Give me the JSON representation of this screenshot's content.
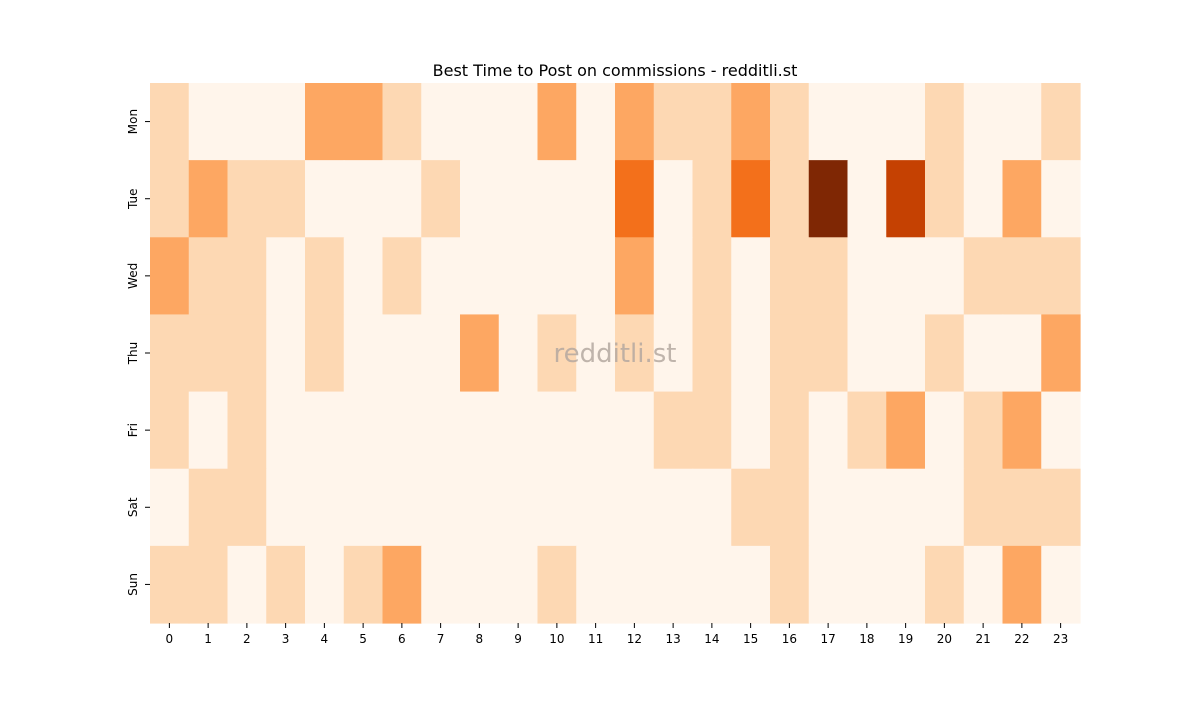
{
  "chart_data": {
    "type": "heatmap",
    "title": "Best Time to Post on commissions - redditli.st",
    "watermark": "redditli.st",
    "xlabel": "",
    "ylabel": "",
    "x_categories": [
      "0",
      "1",
      "2",
      "3",
      "4",
      "5",
      "6",
      "7",
      "8",
      "9",
      "10",
      "11",
      "12",
      "13",
      "14",
      "15",
      "16",
      "17",
      "18",
      "19",
      "20",
      "21",
      "22",
      "23"
    ],
    "y_categories": [
      "Mon",
      "Tue",
      "Wed",
      "Thu",
      "Fri",
      "Sat",
      "Sun"
    ],
    "values": [
      [
        1,
        0,
        0,
        0,
        2,
        2,
        1,
        0,
        0,
        0,
        2,
        0,
        2,
        1,
        1,
        2,
        1,
        0,
        0,
        0,
        1,
        0,
        0,
        1
      ],
      [
        1,
        2,
        1,
        1,
        0,
        0,
        0,
        1,
        0,
        0,
        0,
        0,
        3,
        0,
        1,
        3,
        1,
        5,
        0,
        4,
        1,
        0,
        2,
        0
      ],
      [
        2,
        1,
        1,
        0,
        1,
        0,
        1,
        0,
        0,
        0,
        0,
        0,
        2,
        0,
        1,
        0,
        1,
        1,
        0,
        0,
        0,
        1,
        1,
        1
      ],
      [
        1,
        1,
        1,
        0,
        1,
        0,
        0,
        0,
        2,
        0,
        1,
        0,
        1,
        0,
        1,
        0,
        1,
        1,
        0,
        0,
        1,
        0,
        0,
        2
      ],
      [
        1,
        0,
        1,
        0,
        0,
        0,
        0,
        0,
        0,
        0,
        0,
        0,
        0,
        1,
        1,
        0,
        1,
        0,
        1,
        2,
        0,
        1,
        2,
        0
      ],
      [
        0,
        1,
        1,
        0,
        0,
        0,
        0,
        0,
        0,
        0,
        0,
        0,
        0,
        0,
        0,
        1,
        1,
        0,
        0,
        0,
        0,
        1,
        1,
        1
      ],
      [
        1,
        1,
        0,
        1,
        0,
        1,
        2,
        0,
        0,
        0,
        1,
        0,
        0,
        0,
        0,
        0,
        1,
        0,
        0,
        0,
        1,
        0,
        2,
        0
      ]
    ],
    "color_scale": [
      "#fff5eb",
      "#fdd8b3",
      "#fda762",
      "#f3701b",
      "#c54102",
      "#7f2704"
    ],
    "grid": false,
    "colorbar": false
  }
}
